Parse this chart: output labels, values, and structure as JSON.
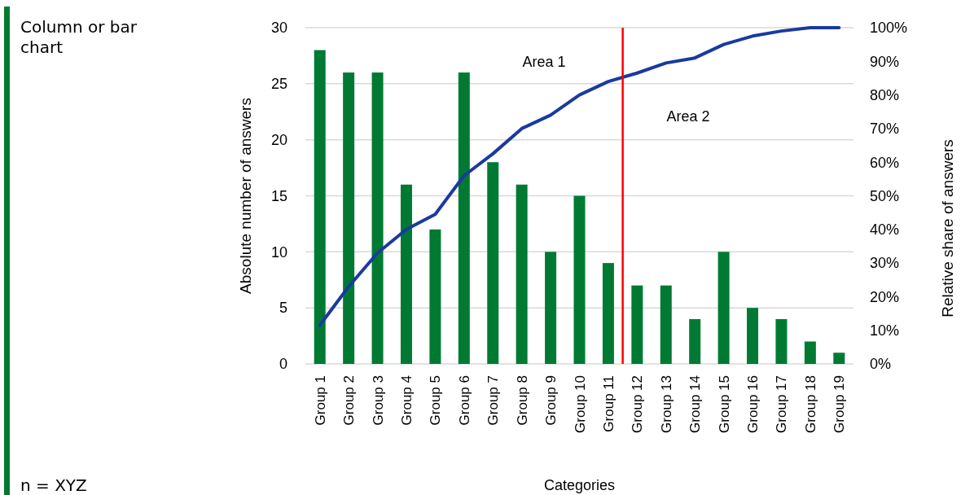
{
  "chart_data": {
    "type": "bar",
    "categories": [
      "Group 1",
      "Group 2",
      "Group 3",
      "Group 4",
      "Group 5",
      "Group 6",
      "Group 7",
      "Group 8",
      "Group 9",
      "Group 10",
      "Group 11",
      "Group 12",
      "Group 13",
      "Group 14",
      "Group 15",
      "Group 16",
      "Group 17",
      "Group 18",
      "Group 19"
    ],
    "series": [
      {
        "color": "#007a33",
        "values": [
          28,
          26,
          26,
          16,
          12,
          26,
          18,
          16,
          10,
          15,
          9,
          7,
          7,
          4,
          10,
          5,
          4,
          2,
          1
        ]
      },
      {
        "type": "line",
        "axis": "y2",
        "color": "#1a3a9e",
        "values": [
          11.5,
          23,
          33,
          40,
          44.5,
          56,
          62.5,
          70,
          74,
          80,
          84,
          86.5,
          89.5,
          91,
          95,
          97.5,
          99,
          100,
          100
        ]
      }
    ],
    "xlabel": "Categories",
    "ylabel": "Absolute number of answers",
    "y2label": "Relative share of answers",
    "ylim": [
      0,
      30
    ],
    "yticks": [
      0,
      5,
      10,
      15,
      20,
      25,
      30
    ],
    "y2lim": [
      0,
      100
    ],
    "y2ticks": [
      {
        "value": 0,
        "label": "0%"
      },
      {
        "value": 10,
        "label": "10%"
      },
      {
        "value": 20,
        "label": "20%"
      },
      {
        "value": 30,
        "label": "30%"
      },
      {
        "value": 40,
        "label": "40%"
      },
      {
        "value": 50,
        "label": "50%"
      },
      {
        "value": 60,
        "label": "60%"
      },
      {
        "value": 70,
        "label": "70%"
      },
      {
        "value": 80,
        "label": "80%"
      },
      {
        "value": 90,
        "label": "90%"
      },
      {
        "value": 100,
        "label": "100%"
      }
    ],
    "ref_lines": [
      {
        "axis": "x",
        "value": "Group 11",
        "color": "#ff0000"
      }
    ],
    "grid": "y",
    "marker": "none",
    "line_style": "solid",
    "annotations": [
      "Column or bar chart",
      "n = XYZ",
      "Area 1",
      "Area 2"
    ]
  }
}
